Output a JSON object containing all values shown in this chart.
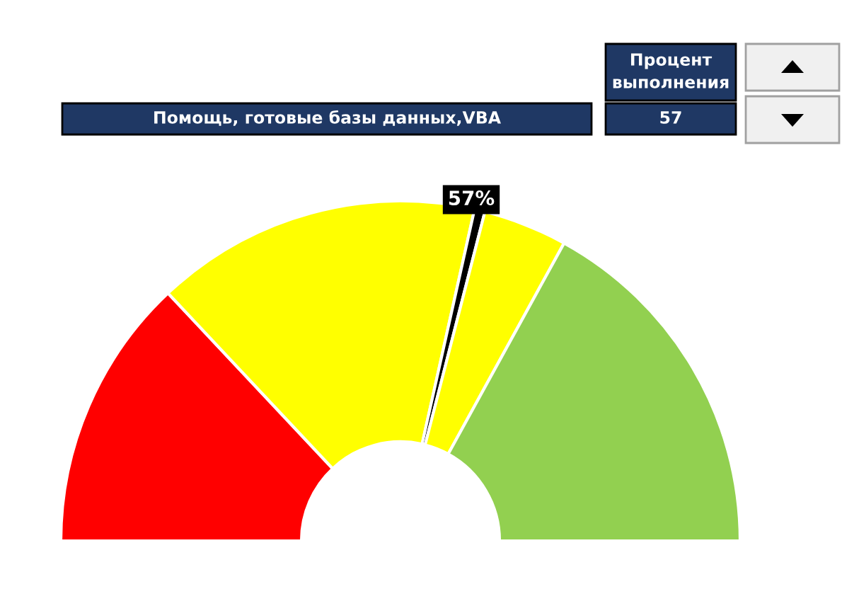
{
  "chart_data": {
    "type": "donut",
    "categories": [
      null,
      null,
      null,
      null,
      null
    ],
    "values": [
      26,
      31,
      1,
      8,
      34
    ],
    "colors": [
      "#ff0000",
      "#ffff00",
      "#000000",
      "#ffff00",
      "#92d050"
    ],
    "annotations": [
      "Помощь, готовые базы данных,VBA",
      "Процент выполнения",
      "57",
      "57%"
    ]
  }
}
